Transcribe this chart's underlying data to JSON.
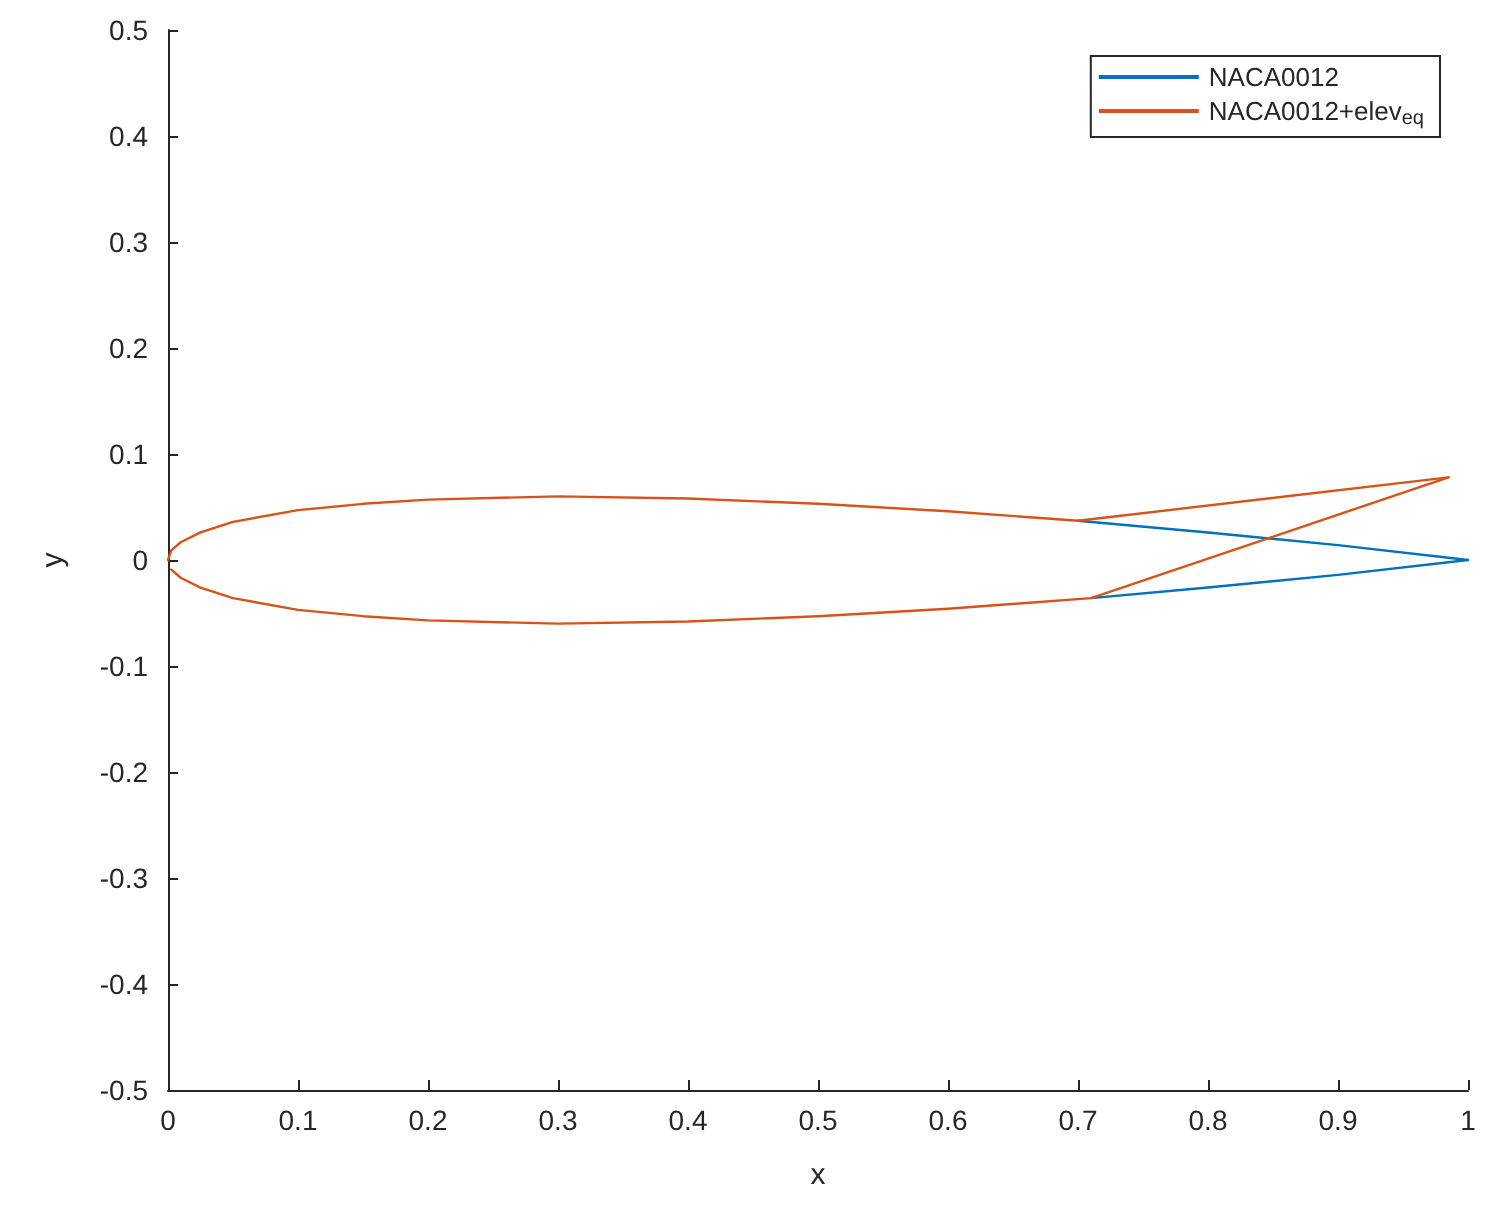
{
  "chart_data": {
    "type": "line",
    "xlabel": "x",
    "ylabel": "y",
    "xlim": [
      0,
      1
    ],
    "ylim": [
      -0.5,
      0.5
    ],
    "xticks": [
      0,
      0.1,
      0.2,
      0.3,
      0.4,
      0.5,
      0.6,
      0.7,
      0.8,
      0.9,
      1
    ],
    "yticks": [
      -0.5,
      -0.4,
      -0.3,
      -0.2,
      -0.1,
      0,
      0.1,
      0.2,
      0.3,
      0.4,
      0.5
    ],
    "grid": false,
    "legend": "top right",
    "marker": "none",
    "line_style": "solid",
    "series": [
      {
        "name": "NACA0012",
        "color": "#0072bd",
        "x": [
          0.7,
          0.8,
          0.9,
          1
        ],
        "values": [
          0.037,
          0.026,
          0.014,
          0
        ]
      },
      {
        "color": "#0072bd",
        "x": [
          0.71,
          0.8,
          0.9,
          1
        ],
        "values": [
          -0.036,
          -0.026,
          -0.014,
          0
        ]
      },
      {
        "name": "NACA0012+elev$_{eq}$",
        "color": "#d95319",
        "x": [
          0,
          0.0025,
          0.01,
          0.025,
          0.05,
          0.1,
          0.15,
          0.2,
          0.3,
          0.4,
          0.5,
          0.6,
          0.7,
          0.985
        ],
        "values": [
          0,
          0.009,
          0.017,
          0.026,
          0.036,
          0.047,
          0.053,
          0.057,
          0.06,
          0.058,
          0.053,
          0.046,
          0.037,
          0.078
        ]
      },
      {
        "color": "#d95319",
        "x": [
          0.0025,
          0.01,
          0.025,
          0.05,
          0.1,
          0.15,
          0.2,
          0.3,
          0.4,
          0.5,
          0.6,
          0.71,
          0.985
        ],
        "values": [
          -0.009,
          -0.017,
          -0.026,
          -0.036,
          -0.047,
          -0.053,
          -0.057,
          -0.06,
          -0.058,
          -0.053,
          -0.046,
          -0.036,
          0.078
        ]
      }
    ]
  }
}
